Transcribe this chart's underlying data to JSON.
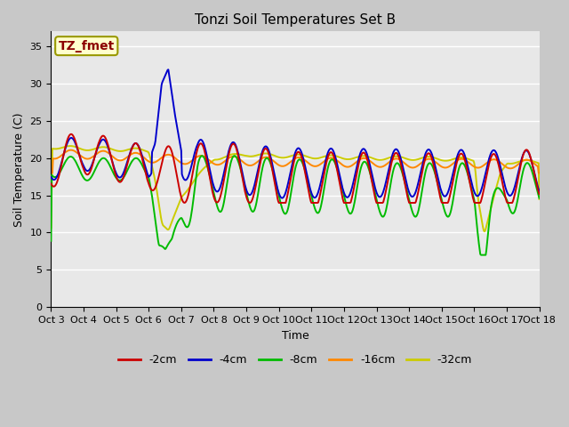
{
  "title": "Tonzi Soil Temperatures Set B",
  "xlabel": "Time",
  "ylabel": "Soil Temperature (C)",
  "ylim": [
    0,
    37
  ],
  "yticks": [
    0,
    5,
    10,
    15,
    20,
    25,
    30,
    35
  ],
  "annotation": "TZ_fmet",
  "plot_bg_color": "#e8e8e8",
  "line_colors": {
    "-2cm": "#cc0000",
    "-4cm": "#0000cc",
    "-8cm": "#00bb00",
    "-16cm": "#ff8800",
    "-32cm": "#cccc00"
  },
  "x_tick_labels": [
    "Oct 3",
    "Oct 4",
    "Oct 5",
    "Oct 6",
    "Oct 7",
    "Oct 8",
    "Oct 9",
    "Oct 10",
    "Oct 11",
    "Oct 12",
    "Oct 13",
    "Oct 14",
    "Oct 15",
    "Oct 16",
    "Oct 17",
    "Oct 18"
  ],
  "title_fontsize": 11,
  "label_fontsize": 9,
  "tick_fontsize": 8,
  "legend_fontsize": 9,
  "annotation_fontsize": 10
}
